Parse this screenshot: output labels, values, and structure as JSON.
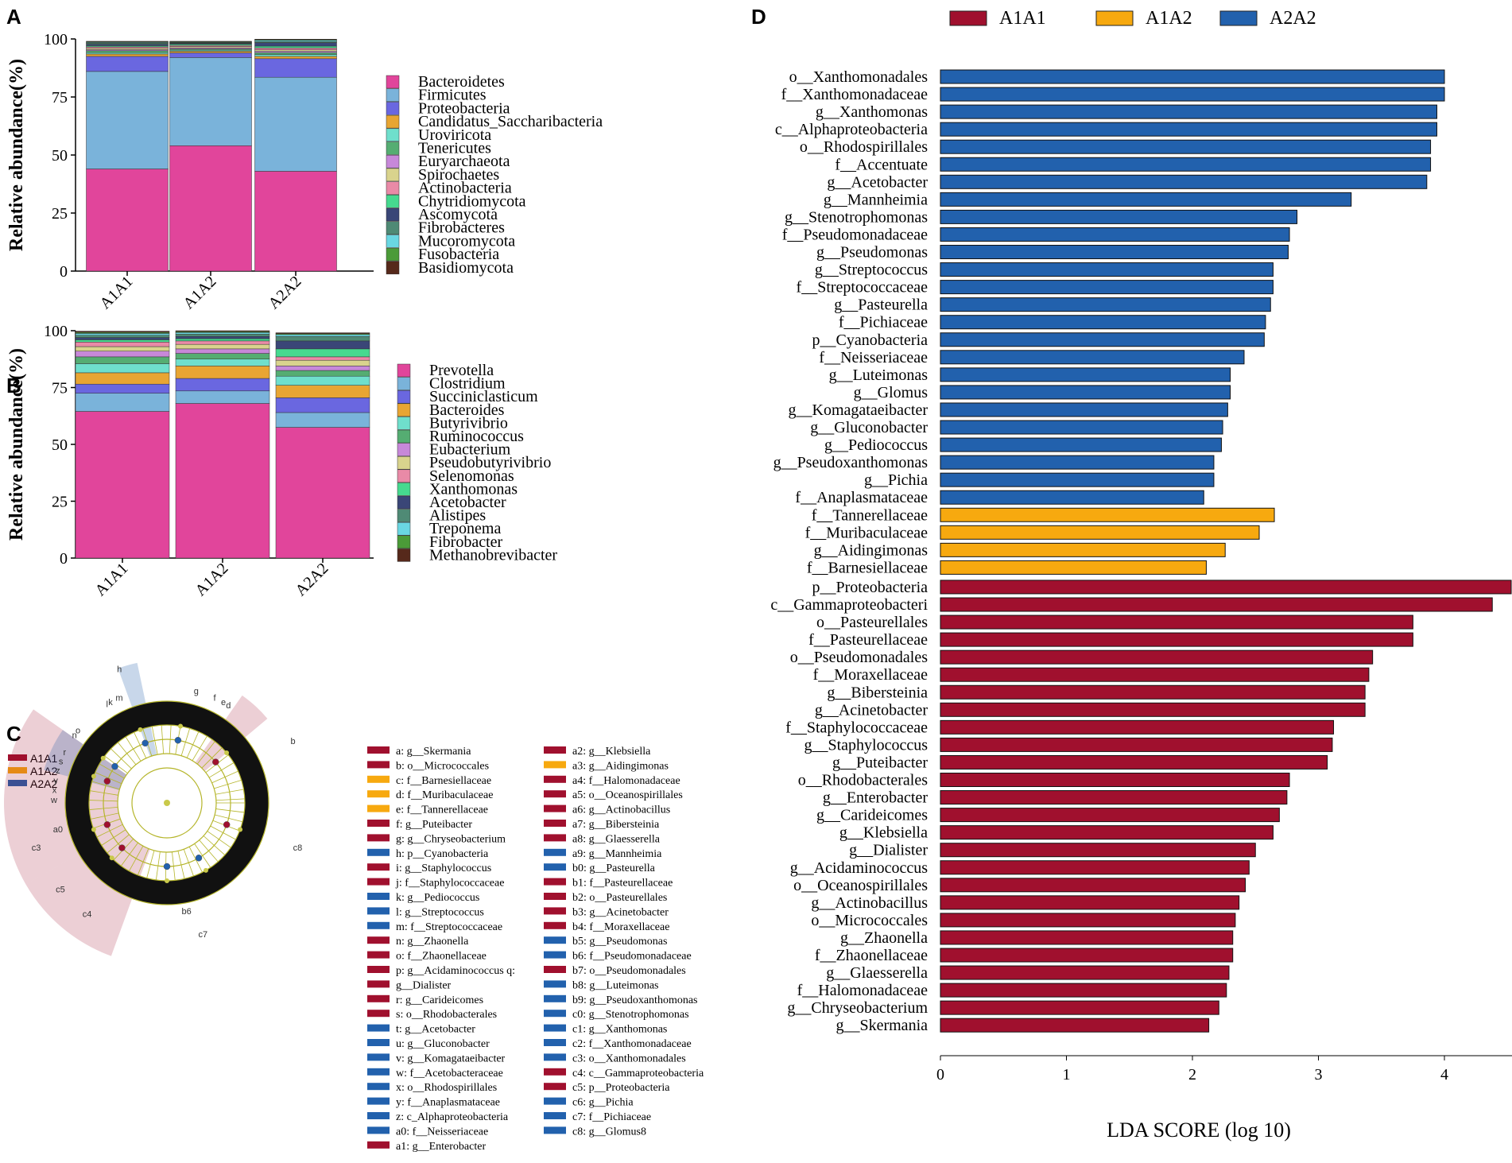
{
  "panels": {
    "a": {
      "label": "A"
    },
    "b": {
      "label": "B"
    },
    "c": {
      "label": "C"
    },
    "d": {
      "label": "D"
    }
  },
  "colors": {
    "A1A1": "#a0102e",
    "A1A2": "#f7a90f",
    "A2A2": "#2261ad"
  },
  "chart_data": [
    {
      "id": "A",
      "type": "bar",
      "stacked": true,
      "ylabel": "Relative abundance(%)",
      "xlabel": "",
      "ylim": [
        0,
        100
      ],
      "yticks": [
        0,
        25,
        50,
        75,
        100
      ],
      "categories": [
        "A1A1",
        "A1A2",
        "A2A2"
      ],
      "series": [
        {
          "name": "Bacteroidetes",
          "color": "#e1459b",
          "values": [
            44,
            54,
            43
          ]
        },
        {
          "name": "Firmicutes",
          "color": "#7ab3da",
          "values": [
            42,
            38,
            40.5
          ]
        },
        {
          "name": "Proteobacteria",
          "color": "#6a67e0",
          "values": [
            6.5,
            2,
            8
          ]
        },
        {
          "name": "Candidatus_Saccharibacteria",
          "color": "#e8a533",
          "values": [
            1,
            0.7,
            1
          ]
        },
        {
          "name": "Uroviricota",
          "color": "#6fdfcc",
          "values": [
            0.6,
            0.5,
            0.8
          ]
        },
        {
          "name": "Tenericutes",
          "color": "#55ad72",
          "values": [
            0.8,
            0.5,
            0.8
          ]
        },
        {
          "name": "Euryarchaeota",
          "color": "#c788d9",
          "values": [
            0.5,
            0.5,
            0.6
          ]
        },
        {
          "name": "Spirochaetes",
          "color": "#d9d38d",
          "values": [
            0.6,
            0.5,
            0.6
          ]
        },
        {
          "name": "Actinobacteria",
          "color": "#e98aa7",
          "values": [
            0.6,
            0.5,
            0.8
          ]
        },
        {
          "name": "Chytridiomycota",
          "color": "#46d98f",
          "values": [
            0.5,
            0.5,
            0.8
          ]
        },
        {
          "name": "Ascomycota",
          "color": "#3a4677",
          "values": [
            0.6,
            0.3,
            1.5
          ]
        },
        {
          "name": "Fibrobacteres",
          "color": "#4f8a75",
          "values": [
            0.5,
            0.3,
            0.5
          ]
        },
        {
          "name": "Mucoromycota",
          "color": "#6ad7e2",
          "values": [
            0.3,
            0.2,
            0.5
          ]
        },
        {
          "name": "Fusobacteria",
          "color": "#4b9b38",
          "values": [
            0.3,
            0.3,
            0.3
          ]
        },
        {
          "name": "Basidiomycota",
          "color": "#56291b",
          "values": [
            0.2,
            0.2,
            0.2
          ]
        }
      ]
    },
    {
      "id": "B",
      "type": "bar",
      "stacked": true,
      "ylabel": "Relative abundance(%)",
      "xlabel": "",
      "ylim": [
        0,
        100
      ],
      "yticks": [
        0,
        25,
        50,
        75,
        100
      ],
      "categories": [
        "A1A1",
        "A1A2",
        "A2A2"
      ],
      "series": [
        {
          "name": "Prevotella",
          "color": "#e1459b",
          "values": [
            64.5,
            68,
            57.5
          ]
        },
        {
          "name": "Clostridium",
          "color": "#7ab3da",
          "values": [
            8,
            5.5,
            6.5
          ]
        },
        {
          "name": "Succiniclasticum",
          "color": "#6a67e0",
          "values": [
            4,
            5.5,
            6.5
          ]
        },
        {
          "name": "Bacteroides",
          "color": "#e8a533",
          "values": [
            5,
            5.5,
            5.5
          ]
        },
        {
          "name": "Butyrivibrio",
          "color": "#6fdfcc",
          "values": [
            4,
            3,
            4
          ]
        },
        {
          "name": "Ruminococcus",
          "color": "#55ad72",
          "values": [
            3,
            2.5,
            2.5
          ]
        },
        {
          "name": "Eubacterium",
          "color": "#c788d9",
          "values": [
            2.5,
            2,
            2
          ]
        },
        {
          "name": "Pseudobutyrivibrio",
          "color": "#d9d38d",
          "values": [
            2,
            2,
            2.5
          ]
        },
        {
          "name": "Selenomonas",
          "color": "#e98aa7",
          "values": [
            2,
            1.5,
            1.5
          ]
        },
        {
          "name": "Xanthomonas",
          "color": "#46d98f",
          "values": [
            1,
            1,
            3.5
          ]
        },
        {
          "name": "Acetobacter",
          "color": "#3a4677",
          "values": [
            1,
            1,
            3.5
          ]
        },
        {
          "name": "Alistipes",
          "color": "#4f8a75",
          "values": [
            1,
            1,
            2
          ]
        },
        {
          "name": "Treponema",
          "color": "#6ad7e2",
          "values": [
            0.8,
            0.7,
            0.8
          ]
        },
        {
          "name": "Fibrobacter",
          "color": "#4b9b38",
          "values": [
            0.5,
            0.4,
            0.4
          ]
        },
        {
          "name": "Methanobrevibacter",
          "color": "#56291b",
          "values": [
            0.5,
            0.4,
            0.4
          ]
        }
      ]
    },
    {
      "id": "D",
      "type": "bar",
      "orientation": "horizontal",
      "xlabel": "LDA SCORE (log 10)",
      "ylabel": "",
      "xlim": [
        0,
        4.5
      ],
      "xticks": [
        0,
        1,
        2,
        3,
        4
      ],
      "legend": [
        "A1A1",
        "A1A2",
        "A2A2"
      ],
      "bars": [
        {
          "label": "o__Xanthomonadales",
          "group": "A2A2",
          "value": 4.0
        },
        {
          "label": "f__Xanthomonadaceae",
          "group": "A2A2",
          "value": 4.0
        },
        {
          "label": "g__Xanthomonas",
          "group": "A2A2",
          "value": 3.94
        },
        {
          "label": "c__Alphaproteobacteria",
          "group": "A2A2",
          "value": 3.94
        },
        {
          "label": "o__Rhodospirillales",
          "group": "A2A2",
          "value": 3.89
        },
        {
          "label": "f__Accentuate",
          "group": "A2A2",
          "value": 3.89
        },
        {
          "label": "g__Acetobacter",
          "group": "A2A2",
          "value": 3.86
        },
        {
          "label": "g__Mannheimia",
          "group": "A2A2",
          "value": 3.26
        },
        {
          "label": "g__Stenotrophomonas",
          "group": "A2A2",
          "value": 2.83
        },
        {
          "label": "f__Pseudomonadaceae",
          "group": "A2A2",
          "value": 2.77
        },
        {
          "label": "g__Pseudomonas",
          "group": "A2A2",
          "value": 2.76
        },
        {
          "label": "g__Streptococcus",
          "group": "A2A2",
          "value": 2.64
        },
        {
          "label": "f__Streptococcaceae",
          "group": "A2A2",
          "value": 2.64
        },
        {
          "label": "g__Pasteurella",
          "group": "A2A2",
          "value": 2.62
        },
        {
          "label": "f__Pichiaceae",
          "group": "A2A2",
          "value": 2.58
        },
        {
          "label": "p__Cyanobacteria",
          "group": "A2A2",
          "value": 2.57
        },
        {
          "label": "f__Neisseriaceae",
          "group": "A2A2",
          "value": 2.41
        },
        {
          "label": "g__Luteimonas",
          "group": "A2A2",
          "value": 2.3
        },
        {
          "label": "g__Glomus",
          "group": "A2A2",
          "value": 2.3
        },
        {
          "label": "g__Komagataeibacter",
          "group": "A2A2",
          "value": 2.28
        },
        {
          "label": "g__Gluconobacter",
          "group": "A2A2",
          "value": 2.24
        },
        {
          "label": "g__Pediococcus",
          "group": "A2A2",
          "value": 2.23
        },
        {
          "label": "g__Pseudoxanthomonas",
          "group": "A2A2",
          "value": 2.17
        },
        {
          "label": "g__Pichia",
          "group": "A2A2",
          "value": 2.17
        },
        {
          "label": "f__Anaplasmataceae",
          "group": "A2A2",
          "value": 2.09
        },
        {
          "label": "f__Tannerellaceae",
          "group": "A1A2",
          "value": 2.65
        },
        {
          "label": "f__Muribaculaceae",
          "group": "A1A2",
          "value": 2.53
        },
        {
          "label": "g__Aidingimonas",
          "group": "A1A2",
          "value": 2.26
        },
        {
          "label": "f__Barnesiellaceae",
          "group": "A1A2",
          "value": 2.11
        },
        {
          "label": "p__Proteobacteria",
          "group": "A1A1",
          "value": 4.53
        },
        {
          "label": "c__Gammaproteobacteri",
          "group": "A1A1",
          "value": 4.38
        },
        {
          "label": "o__Pasteurellales",
          "group": "A1A1",
          "value": 3.75
        },
        {
          "label": "f__Pasteurellaceae",
          "group": "A1A1",
          "value": 3.75
        },
        {
          "label": "o__Pseudomonadales",
          "group": "A1A1",
          "value": 3.43
        },
        {
          "label": "f__Moraxellaceae",
          "group": "A1A1",
          "value": 3.4
        },
        {
          "label": "g__Bibersteinia",
          "group": "A1A1",
          "value": 3.37
        },
        {
          "label": "g__Acinetobacter",
          "group": "A1A1",
          "value": 3.37
        },
        {
          "label": "f__Staphylococcaceae",
          "group": "A1A1",
          "value": 3.12
        },
        {
          "label": "g__Staphylococcus",
          "group": "A1A1",
          "value": 3.11
        },
        {
          "label": "g__Puteibacter",
          "group": "A1A1",
          "value": 3.07
        },
        {
          "label": "o__Rhodobacterales",
          "group": "A1A1",
          "value": 2.77
        },
        {
          "label": "g__Enterobacter",
          "group": "A1A1",
          "value": 2.75
        },
        {
          "label": "g__Carideicomes",
          "group": "A1A1",
          "value": 2.69
        },
        {
          "label": "g__Klebsiella",
          "group": "A1A1",
          "value": 2.64
        },
        {
          "label": "g__Dialister",
          "group": "A1A1",
          "value": 2.5
        },
        {
          "label": "g__Acidaminococcus",
          "group": "A1A1",
          "value": 2.45
        },
        {
          "label": "o__Oceanospirillales",
          "group": "A1A1",
          "value": 2.42
        },
        {
          "label": "g__Actinobacillus",
          "group": "A1A1",
          "value": 2.37
        },
        {
          "label": "o__Micrococcales",
          "group": "A1A1",
          "value": 2.34
        },
        {
          "label": "g__Zhaonella",
          "group": "A1A1",
          "value": 2.32
        },
        {
          "label": "f__Zhaonellaceae",
          "group": "A1A1",
          "value": 2.32
        },
        {
          "label": "g__Glaesserella",
          "group": "A1A1",
          "value": 2.29
        },
        {
          "label": "f__Halomonadaceae",
          "group": "A1A1",
          "value": 2.27
        },
        {
          "label": "g__Chryseobacterium",
          "group": "A1A1",
          "value": 2.21
        },
        {
          "label": "g__Skermania",
          "group": "A1A1",
          "value": 2.13
        }
      ]
    }
  ],
  "cladogram": {
    "legend": [
      {
        "name": "A1A1",
        "group": "A1A1"
      },
      {
        "name": "A1A2",
        "group": "A1A2"
      },
      {
        "name": "A2A2",
        "group": "A2A2"
      }
    ],
    "sector_labels": [
      "h",
      "b",
      "c3",
      "c4",
      "c5",
      "c7",
      "c8",
      "b6",
      "a0",
      "m",
      "k",
      "l",
      "z",
      "y",
      "x",
      "w",
      "s",
      "r",
      "n",
      "o",
      "g",
      "f",
      "e",
      "d"
    ],
    "key_col1": [
      {
        "text": "a: g__Skermania",
        "group": "A1A1"
      },
      {
        "text": "b: o__Micrococcales",
        "group": "A1A1"
      },
      {
        "text": "c: f__Barnesiellaceae",
        "group": "A1A2"
      },
      {
        "text": "d: f__Muribaculaceae",
        "group": "A1A2"
      },
      {
        "text": "e: f__Tannerellaceae",
        "group": "A1A2"
      },
      {
        "text": "f: g__Puteibacter",
        "group": "A1A1"
      },
      {
        "text": "g: g__Chryseobacterium",
        "group": "A1A1"
      },
      {
        "text": "h: p__Cyanobacteria",
        "group": "A2A2"
      },
      {
        "text": "i: g__Staphylococcus",
        "group": "A1A1"
      },
      {
        "text": "j: f__Staphylococcaceae",
        "group": "A1A1"
      },
      {
        "text": "k: g__Pediococcus",
        "group": "A2A2"
      },
      {
        "text": "l: g__Streptococcus",
        "group": "A2A2"
      },
      {
        "text": "m: f__Streptococcaceae",
        "group": "A2A2"
      },
      {
        "text": "n: g__Zhaonella",
        "group": "A1A1"
      },
      {
        "text": "o: f__Zhaonellaceae",
        "group": "A1A1"
      },
      {
        "text": "p: g__Acidaminococcus q:",
        "group": "A1A1"
      },
      {
        "text": "g__Dialister",
        "group": "A1A1"
      },
      {
        "text": "r: g__Carideicomes",
        "group": "A1A1"
      },
      {
        "text": "s: o__Rhodobacterales",
        "group": "A1A1"
      },
      {
        "text": "t: g__Acetobacter",
        "group": "A2A2"
      },
      {
        "text": "u: g__Gluconobacter",
        "group": "A2A2"
      },
      {
        "text": "v: g__Komagataeibacter",
        "group": "A2A2"
      },
      {
        "text": "w: f__Acetobacteraceae",
        "group": "A2A2"
      },
      {
        "text": "x: o__Rhodospirillales",
        "group": "A2A2"
      },
      {
        "text": "y: f__Anaplasmataceae",
        "group": "A2A2"
      },
      {
        "text": "z: c_Alphaproteobacteria",
        "group": "A2A2"
      },
      {
        "text": "a0: f__Neisseriaceae",
        "group": "A2A2"
      },
      {
        "text": "a1: g__Enterobacter",
        "group": "A1A1"
      }
    ],
    "key_col2": [
      {
        "text": "a2: g__Klebsiella",
        "group": "A1A1"
      },
      {
        "text": "a3: g__Aidingimonas",
        "group": "A1A2"
      },
      {
        "text": "a4: f__Halomonadaceae",
        "group": "A1A1"
      },
      {
        "text": "a5: o__Oceanospirillales",
        "group": "A1A1"
      },
      {
        "text": "a6: g__Actinobacillus",
        "group": "A1A1"
      },
      {
        "text": "a7: g__Bibersteinia",
        "group": "A1A1"
      },
      {
        "text": "a8: g__Glaesserella",
        "group": "A1A1"
      },
      {
        "text": "a9: g__Mannheimia",
        "group": "A2A2"
      },
      {
        "text": "b0: g__Pasteurella",
        "group": "A2A2"
      },
      {
        "text": "b1: f__Pasteurellaceae",
        "group": "A1A1"
      },
      {
        "text": "b2: o__Pasteurellales",
        "group": "A1A1"
      },
      {
        "text": "b3: g__Acinetobacter",
        "group": "A1A1"
      },
      {
        "text": "b4: f__Moraxellaceae",
        "group": "A1A1"
      },
      {
        "text": "b5: g__Pseudomonas",
        "group": "A2A2"
      },
      {
        "text": "b6: f__Pseudomonadaceae",
        "group": "A2A2"
      },
      {
        "text": "b7: o__Pseudomonadales",
        "group": "A1A1"
      },
      {
        "text": "b8: g__Luteimonas",
        "group": "A2A2"
      },
      {
        "text": "b9: g__Pseudoxanthomonas",
        "group": "A2A2"
      },
      {
        "text": "c0: g__Stenotrophomonas",
        "group": "A2A2"
      },
      {
        "text": "c1: g__Xanthomonas",
        "group": "A2A2"
      },
      {
        "text": "c2: f__Xanthomonadaceae",
        "group": "A2A2"
      },
      {
        "text": "c3: o__Xanthomonadales",
        "group": "A2A2"
      },
      {
        "text": "c4: c__Gammaproteobacteria",
        "group": "A1A1"
      },
      {
        "text": "c5: p__Proteobacteria",
        "group": "A1A1"
      },
      {
        "text": "c6: g__Pichia",
        "group": "A2A2"
      },
      {
        "text": "c7: f__Pichiaceae",
        "group": "A2A2"
      },
      {
        "text": "c8: g__Glomus8",
        "group": "A2A2"
      }
    ]
  }
}
